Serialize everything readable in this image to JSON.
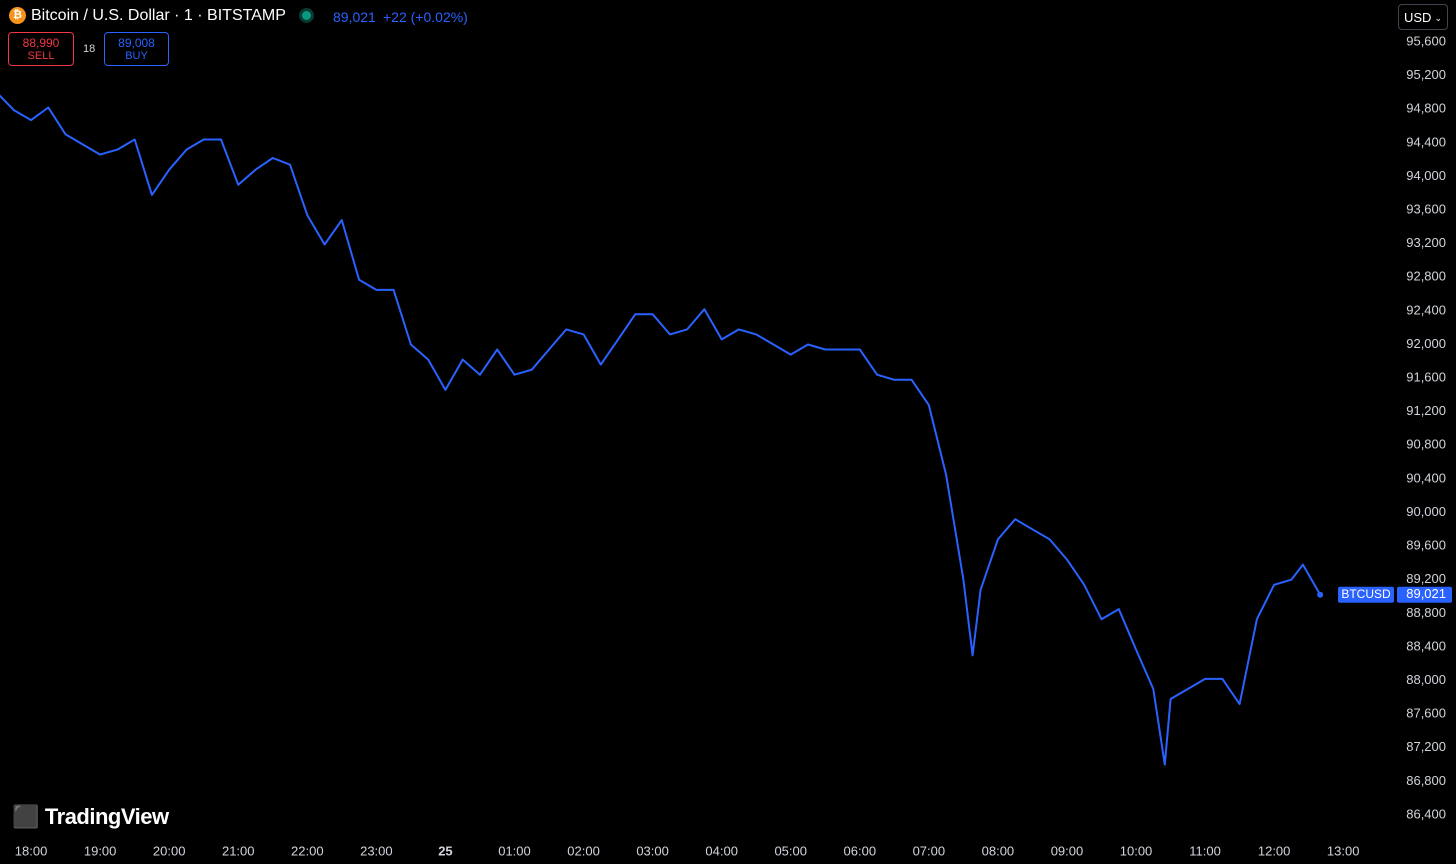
{
  "header": {
    "symbol": "Bitcoin / U.S. Dollar · 1 · BITSTAMP",
    "last": "89,021",
    "change": "+22 (+0.02%)",
    "currency": "USD"
  },
  "trade": {
    "sell_price": "88,990",
    "sell_label": "SELL",
    "spread": "18",
    "buy_price": "89,008",
    "buy_label": "BUY"
  },
  "brand": "TradingView",
  "chart_data": {
    "type": "line",
    "x": [
      "17:30",
      "17:45",
      "18:00",
      "18:15",
      "18:30",
      "18:45",
      "19:00",
      "19:15",
      "19:30",
      "19:45",
      "20:00",
      "20:15",
      "20:30",
      "20:45",
      "21:00",
      "21:15",
      "21:30",
      "21:45",
      "22:00",
      "22:15",
      "22:30",
      "22:45",
      "23:00",
      "23:15",
      "23:30",
      "23:45",
      "00:00",
      "00:15",
      "00:30",
      "00:45",
      "01:00",
      "01:15",
      "01:30",
      "01:45",
      "02:00",
      "02:15",
      "02:30",
      "02:45",
      "03:00",
      "03:15",
      "03:30",
      "03:45",
      "04:00",
      "04:15",
      "04:30",
      "04:45",
      "05:00",
      "05:15",
      "05:30",
      "05:45",
      "06:00",
      "06:15",
      "06:30",
      "06:45",
      "07:00",
      "07:15",
      "07:30",
      "07:38",
      "07:45",
      "08:00",
      "08:15",
      "08:30",
      "08:45",
      "09:00",
      "09:15",
      "09:30",
      "09:45",
      "10:00",
      "10:15",
      "10:25",
      "10:30",
      "10:45",
      "11:00",
      "11:15",
      "11:30",
      "11:45",
      "12:00",
      "12:15",
      "12:25",
      "12:40"
    ],
    "series": [
      {
        "name": "BTCUSD",
        "color": "#2962ff",
        "values": [
          95000,
          94790,
          94670,
          94820,
          94500,
          94380,
          94260,
          94320,
          94440,
          93780,
          94080,
          94320,
          94440,
          94440,
          93900,
          94080,
          94220,
          94140,
          93540,
          93190,
          93480,
          92770,
          92650,
          92650,
          92000,
          91820,
          91460,
          91820,
          91640,
          91940,
          91640,
          91700,
          91940,
          92180,
          92120,
          91760,
          92060,
          92360,
          92360,
          92120,
          92180,
          92420,
          92060,
          92180,
          92120,
          92000,
          91880,
          92000,
          91940,
          91940,
          91940,
          91640,
          91580,
          91580,
          91280,
          90450,
          89200,
          88300,
          89080,
          89680,
          89920,
          89800,
          89680,
          89440,
          89140,
          88730,
          88850,
          88370,
          87900,
          87000,
          87780,
          87900,
          88020,
          88020,
          87720,
          88730,
          89140,
          89200,
          89380,
          89021
        ]
      }
    ],
    "last_value_label": "89,021",
    "xlim": [
      "17:33",
      "13:45"
    ],
    "xticks": [
      "18:00",
      "19:00",
      "20:00",
      "21:00",
      "22:00",
      "23:00",
      {
        "value": "00:00",
        "label": "25"
      },
      "01:00",
      "02:00",
      "03:00",
      "04:00",
      "05:00",
      "06:00",
      "07:00",
      "08:00",
      "09:00",
      "10:00",
      "11:00",
      "12:00",
      "13:00"
    ],
    "ylim": [
      86150,
      96100
    ],
    "yticks": [
      {
        "value": 86400,
        "label": "86,400"
      },
      {
        "value": 86800,
        "label": "86,800"
      },
      {
        "value": 87200,
        "label": "87,200"
      },
      {
        "value": 87600,
        "label": "87,600"
      },
      {
        "value": 88000,
        "label": "88,000"
      },
      {
        "value": 88400,
        "label": "88,400"
      },
      {
        "value": 88800,
        "label": "88,800"
      },
      {
        "value": 89200,
        "label": "89,200"
      },
      {
        "value": 89600,
        "label": "89,600"
      },
      {
        "value": 90000,
        "label": "90,000"
      },
      {
        "value": 90400,
        "label": "90,400"
      },
      {
        "value": 90800,
        "label": "90,800"
      },
      {
        "value": 91200,
        "label": "91,200"
      },
      {
        "value": 91600,
        "label": "91,600"
      },
      {
        "value": 92000,
        "label": "92,000"
      },
      {
        "value": 92400,
        "label": "92,400"
      },
      {
        "value": 92800,
        "label": "92,800"
      },
      {
        "value": 93200,
        "label": "93,200"
      },
      {
        "value": 93600,
        "label": "93,600"
      },
      {
        "value": 94000,
        "label": "94,000"
      },
      {
        "value": 94400,
        "label": "94,400"
      },
      {
        "value": 94800,
        "label": "94,800"
      },
      {
        "value": 95200,
        "label": "95,200"
      },
      {
        "value": 95600,
        "label": "95,600"
      }
    ],
    "grid": false
  }
}
